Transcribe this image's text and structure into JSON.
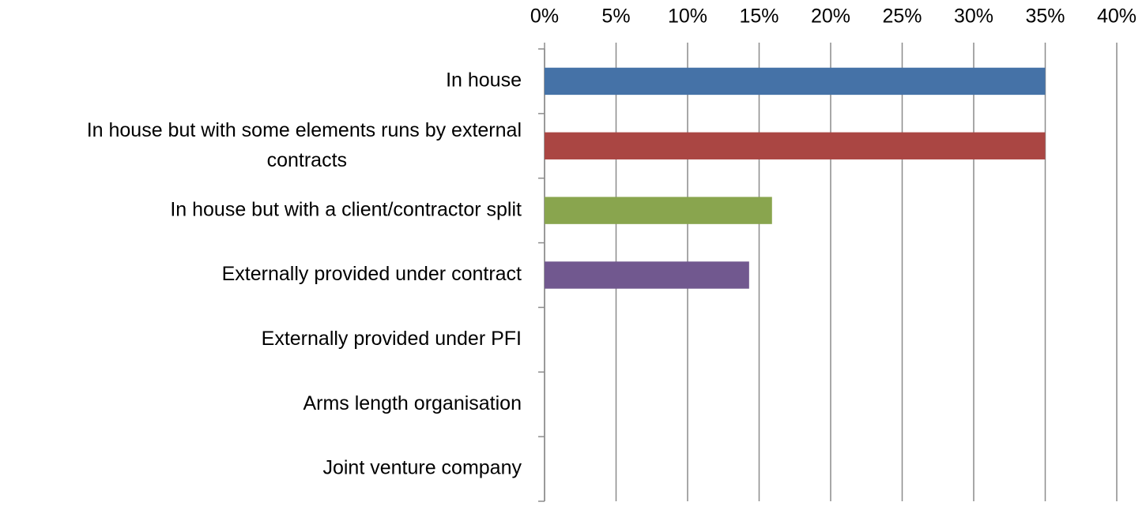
{
  "chart_data": {
    "type": "bar",
    "orientation": "horizontal",
    "categories": [
      "In house",
      "In house but with some elements runs by external contracts",
      "In house but with a client/contractor split",
      "Externally provided under contract",
      "Externally provided under PFI",
      "Arms length organisation",
      "Joint venture company"
    ],
    "values": [
      35,
      35,
      15.9,
      14.3,
      0,
      0,
      0
    ],
    "colors": [
      "#4572a7",
      "#aa4643",
      "#89a54e",
      "#71588f",
      "#4572a7",
      "#aa4643",
      "#89a54e"
    ],
    "xlim": [
      0,
      40
    ],
    "xticks": [
      {
        "value": 0,
        "label": "0%"
      },
      {
        "value": 5,
        "label": "5%"
      },
      {
        "value": 10,
        "label": "10%"
      },
      {
        "value": 15,
        "label": "15%"
      },
      {
        "value": 20,
        "label": "20%"
      },
      {
        "value": 25,
        "label": "25%"
      },
      {
        "value": 30,
        "label": "30%"
      },
      {
        "value": 35,
        "label": "35%"
      },
      {
        "value": 40,
        "label": "40%"
      }
    ],
    "grid": true
  }
}
